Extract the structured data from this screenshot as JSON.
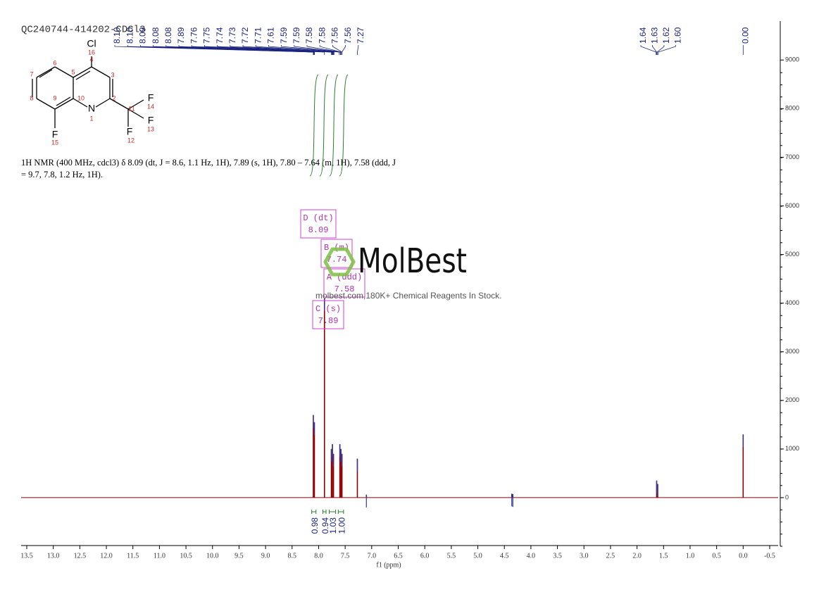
{
  "chart_data": {
    "type": "spectrum",
    "title": "QC240744-414202-CDCl3",
    "xlabel": "f1 (ppm)",
    "xlim": [
      13.5,
      -0.5
    ],
    "xticks": [
      13.5,
      {
        "value": 13,
        "label": "13.0"
      },
      12.5,
      {
        "value": 12,
        "label": "12.0"
      },
      11.5,
      {
        "value": 11,
        "label": "11.0"
      },
      10.5,
      {
        "value": 10,
        "label": "10.0"
      },
      9.5,
      {
        "value": 9,
        "label": "9.0"
      },
      8.5,
      {
        "value": 8,
        "label": "8.0"
      },
      7.5,
      {
        "value": 7,
        "label": "7.0"
      },
      6.5,
      {
        "value": 6,
        "label": "6.0"
      },
      5.5,
      {
        "value": 5,
        "label": "5.0"
      },
      4.5,
      {
        "value": 4,
        "label": "4.0"
      },
      3.5,
      {
        "value": 3,
        "label": "3.0"
      },
      2.5,
      {
        "value": 2,
        "label": "2.0"
      },
      1.5,
      {
        "value": 1,
        "label": "1.0"
      },
      0.5,
      {
        "value": 0,
        "label": "0.0"
      },
      -0.5
    ],
    "ylim": [
      -1000,
      9800
    ],
    "yticks": [
      0,
      1000,
      2000,
      3000,
      4000,
      5000,
      6000,
      7000,
      8000,
      9000
    ],
    "color": "#8b0000",
    "x": [
      8.1,
      8.08,
      7.89,
      7.76,
      7.74,
      7.72,
      7.6,
      7.58,
      7.56,
      7.27,
      7.1,
      4.36,
      4.34,
      1.63,
      1.61,
      0
    ],
    "values": [
      1700,
      1550,
      4100,
      1000,
      1100,
      900,
      1100,
      1000,
      900,
      800,
      60,
      80,
      70,
      350,
      280,
      1300
    ],
    "peak_labels": [
      {
        "value": 8.1,
        "label": "8.10"
      },
      {
        "value": 8.1,
        "label": "8.10"
      },
      8.09,
      8.08,
      8.08,
      7.89,
      7.76,
      7.75,
      7.74,
      7.73,
      7.72,
      7.71,
      7.61,
      7.59,
      7.59,
      7.58,
      7.58,
      7.56,
      7.56,
      7.27,
      1.64,
      1.63,
      1.62,
      {
        "value": 1.6,
        "label": "1.60"
      },
      {
        "value": 0,
        "label": "0.00"
      }
    ],
    "integrals": {
      "ranges": [
        [
          8.13,
          8.05
        ],
        [
          7.92,
          7.86
        ],
        [
          7.8,
          7.68
        ],
        [
          7.63,
          7.53
        ]
      ],
      "values": [
        0.98,
        0.94,
        1.03,
        1
      ],
      "value_labels": [
        "0.98",
        "0.94",
        "1.03",
        "1.00"
      ]
    },
    "multiplets": [
      {
        "label": "D (dt)",
        "shift": 8.09
      },
      {
        "label": "B (m)",
        "shift": 7.74
      },
      {
        "label": "A (ddd)",
        "shift": 7.58
      },
      {
        "label": "C (s)",
        "shift": 7.89
      }
    ],
    "description": [
      "1H NMR (400 MHz, cdcl3) δ 8.09 (dt, J = 8.6, 1.1 Hz, 1H), 7.89 (s, 1H), 7.80 – 7.64 (m, 1H), 7.58 (ddd, J",
      "= 9.7, 7.8, 1.2 Hz, 1H)."
    ],
    "structure": {
      "symbols": [
        "Cl",
        "N",
        "F",
        "F",
        "F",
        "F"
      ],
      "numbers": [
        1,
        2,
        3,
        4,
        5,
        6,
        7,
        8,
        9,
        10,
        11,
        12,
        13,
        14,
        15,
        16
      ]
    },
    "watermark": {
      "brand": "MolBest",
      "tagline": "molbest.com,180K+ Chemical Reagents In Stock."
    }
  }
}
